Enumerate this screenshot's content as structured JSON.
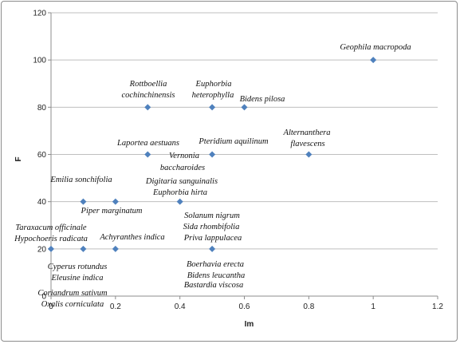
{
  "chart_data": {
    "type": "scatter",
    "xlabel": "Im",
    "ylabel": "F",
    "xlim": [
      0,
      1.2
    ],
    "ylim": [
      0,
      120
    ],
    "x_ticks": [
      "0",
      "0.2",
      "0.4",
      "0.6",
      "0.8",
      "1",
      "1.2"
    ],
    "y_ticks": [
      "0",
      "20",
      "40",
      "60",
      "80",
      "100",
      "120"
    ],
    "grid": "horizontal",
    "legend": "none",
    "marker_color": "#4f81bd",
    "points": [
      {
        "x": 1.0,
        "y": 100
      },
      {
        "x": 0.3,
        "y": 80
      },
      {
        "x": 0.5,
        "y": 80
      },
      {
        "x": 0.6,
        "y": 80
      },
      {
        "x": 0.3,
        "y": 60
      },
      {
        "x": 0.5,
        "y": 60
      },
      {
        "x": 0.8,
        "y": 60
      },
      {
        "x": 0.1,
        "y": 40
      },
      {
        "x": 0.2,
        "y": 40
      },
      {
        "x": 0.4,
        "y": 40
      },
      {
        "x": 0.0,
        "y": 20
      },
      {
        "x": 0.1,
        "y": 20
      },
      {
        "x": 0.2,
        "y": 20
      },
      {
        "x": 0.5,
        "y": 20
      }
    ],
    "annotations": [
      "Geophila macropoda",
      "Rottboellia",
      "cochinchinensis",
      "Euphorbia",
      "heterophylla",
      "Bidens pilosa",
      "Laportea aestuans",
      "Pteridium aquilinum",
      "Alternanthera",
      "flavescens",
      "Vernonia",
      "baccharoides",
      "Digitaria sanguinalis",
      "Euphorbia hirta",
      "Emilia sonchifolia",
      "Piper marginatum",
      "Solanum nigrum",
      "Sida rhombifolia",
      "Priva lappulacea",
      "Taraxacum officinale",
      "Hypochoeris radicata",
      "Achyranthes indica",
      "Cyperus rotundus",
      "Eleusine indica",
      "Coriandrum sativum",
      "Oxalis corniculata",
      "Boerhavia erecta",
      "Bidens leucantha",
      "Bastardia viscosa"
    ]
  }
}
